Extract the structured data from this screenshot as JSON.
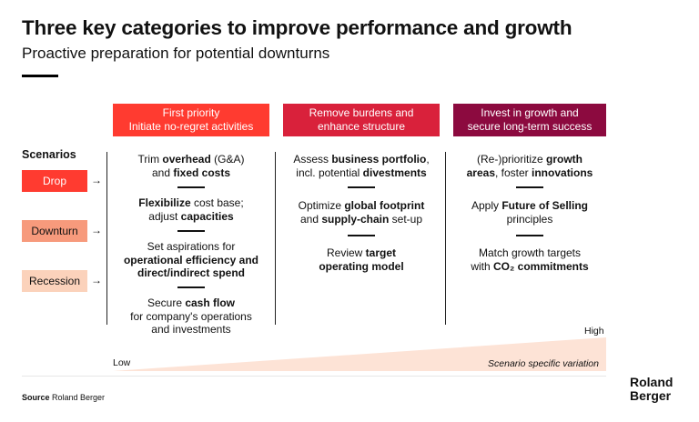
{
  "title": "Three key categories to improve performance and growth",
  "subtitle": "Proactive preparation for potential downturns",
  "columns": [
    {
      "line1": "First priority",
      "line2": "Initiate no-regret activities",
      "color": "#ff3b30"
    },
    {
      "line1": "Remove burdens and",
      "line2": "enhance structure",
      "color": "#d9213b"
    },
    {
      "line1": "Invest in growth and",
      "line2": "secure long-term success",
      "color": "#8c0a3f"
    }
  ],
  "scenarios": {
    "label": "Scenarios",
    "items": [
      {
        "name": "Drop",
        "arrow": "→",
        "color": "#ff3b30"
      },
      {
        "name": "Downturn",
        "arrow": "→",
        "color": "#f79a7c"
      },
      {
        "name": "Recession",
        "arrow": "→",
        "color": "#fbd2bb"
      }
    ]
  },
  "col1": {
    "c1": {
      "a": "Trim ",
      "b": "overhead",
      "c": " (G&A)",
      "d": "and ",
      "e": "fixed costs"
    },
    "c2": {
      "a": "Flexibilize",
      "b": " cost base;",
      "c": "adjust ",
      "d": "capacities"
    },
    "c3": {
      "a": "Set aspirations for",
      "b": "operational efficiency and",
      "c": "direct/indirect spend"
    },
    "c4": {
      "a": "Secure ",
      "b": "cash flow",
      "c": "for company's operations",
      "d": "and investments"
    }
  },
  "col2": {
    "c1": {
      "a": "Assess ",
      "b": "business portfolio",
      "c": ",",
      "d": "incl. potential ",
      "e": "divestments"
    },
    "c2": {
      "a": "Optimize ",
      "b": "global footprint",
      "c": "and ",
      "d": "supply-chain",
      "e": " set-up"
    },
    "c3": {
      "a": "Review ",
      "b": "target",
      "c": "operating model"
    }
  },
  "col3": {
    "c1": {
      "a": "(Re-)prioritize ",
      "b": "growth",
      "c": "areas",
      "d": ", foster ",
      "e": "innovations"
    },
    "c2": {
      "a": "Apply ",
      "b": "Future of Selling",
      "c": "principles"
    },
    "c3": {
      "a": "Match growth targets",
      "b": "with ",
      "c": "CO₂ commitments"
    }
  },
  "scale": {
    "low": "Low",
    "high": "High",
    "caption": "Scenario specific variation",
    "color": "#fde3d6"
  },
  "source": {
    "label": "Source",
    "text": " Roland Berger"
  },
  "logo": {
    "line1": "Roland",
    "line2": "Berger"
  }
}
